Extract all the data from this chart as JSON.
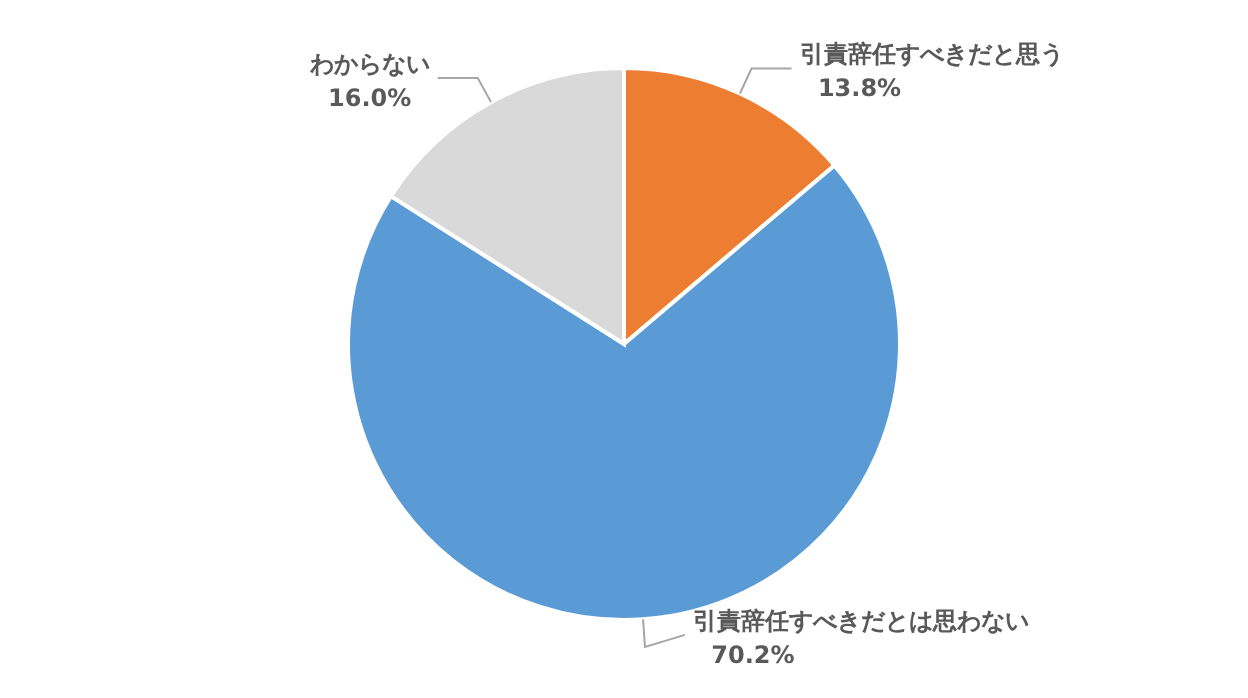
{
  "chart_data": {
    "type": "pie",
    "categories": [
      "引責辞任すべきだと思う",
      "引責辞任すべきだとは思わない",
      "わからない"
    ],
    "values": [
      13.8,
      70.2,
      16.0
    ],
    "colors": [
      "#ed7d31",
      "#5b9bd5",
      "#d9d9d9"
    ],
    "value_labels": [
      "13.8%",
      "70.2%",
      "16.0%"
    ]
  }
}
